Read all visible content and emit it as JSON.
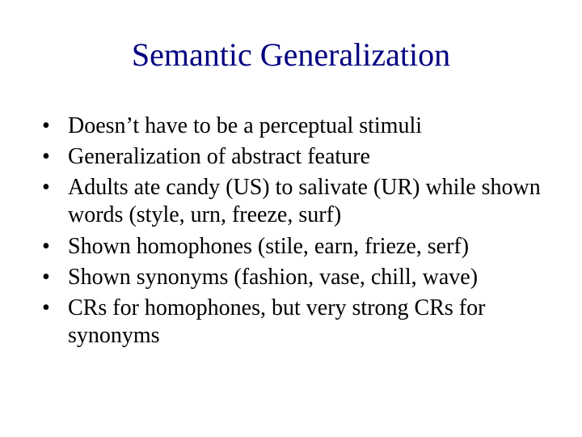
{
  "slide": {
    "title": "Semantic Generalization",
    "title_color": "#000080",
    "title_fontsize": 40,
    "body_color": "#000000",
    "body_fontsize": 28,
    "line_height": 1.22,
    "background_color": "#ffffff",
    "bullets": [
      "Doesn’t have to be a perceptual stimuli",
      "Generalization of abstract feature",
      "Adults ate candy (US) to salivate (UR) while shown words (style, urn, freeze, surf)",
      "Shown homophones (stile, earn, frieze, serf)",
      "Shown synonyms (fashion, vase, chill, wave)",
      "CRs for homophones, but very strong CRs for synonyms"
    ]
  }
}
